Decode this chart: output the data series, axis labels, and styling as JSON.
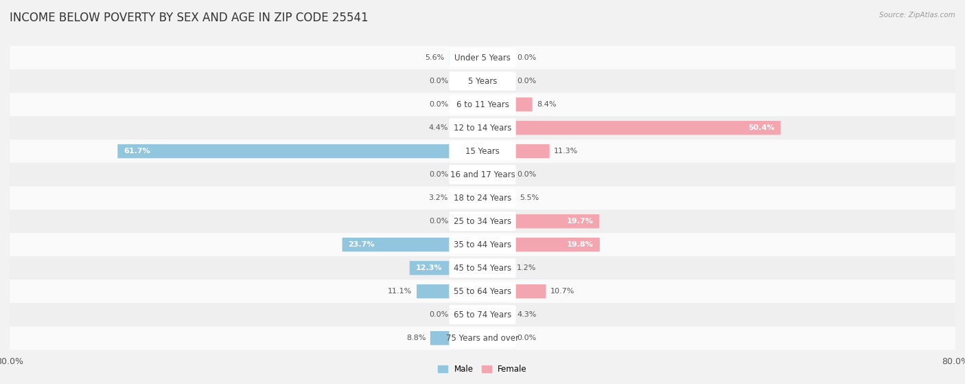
{
  "title": "INCOME BELOW POVERTY BY SEX AND AGE IN ZIP CODE 25541",
  "source": "Source: ZipAtlas.com",
  "categories": [
    "Under 5 Years",
    "5 Years",
    "6 to 11 Years",
    "12 to 14 Years",
    "15 Years",
    "16 and 17 Years",
    "18 to 24 Years",
    "25 to 34 Years",
    "35 to 44 Years",
    "45 to 54 Years",
    "55 to 64 Years",
    "65 to 74 Years",
    "75 Years and over"
  ],
  "male_values": [
    5.6,
    0.0,
    0.0,
    4.4,
    61.7,
    0.0,
    3.2,
    0.0,
    23.7,
    12.3,
    11.1,
    0.0,
    8.8
  ],
  "female_values": [
    0.0,
    0.0,
    8.4,
    50.4,
    11.3,
    0.0,
    5.5,
    19.7,
    19.8,
    1.2,
    10.7,
    4.3,
    0.0
  ],
  "male_color": "#92c5de",
  "female_color": "#f4a6b0",
  "male_label": "Male",
  "female_label": "Female",
  "x_max": 80.0,
  "min_bar": 5.0,
  "background_color": "#f2f2f2",
  "row_bg_light": "#fafafa",
  "row_bg_dark": "#efefef",
  "title_fontsize": 12,
  "label_fontsize": 8.5,
  "axis_fontsize": 9,
  "value_fontsize": 8
}
